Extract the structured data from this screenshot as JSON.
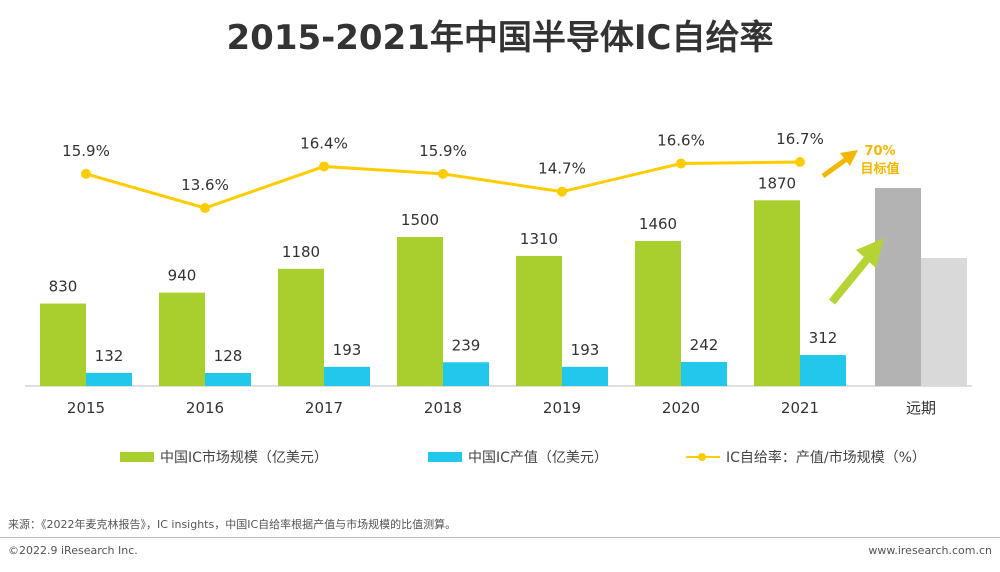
{
  "title": "2015-2021年中国半导体IC自给率",
  "chart_data": {
    "type": "bar",
    "categories": [
      "2015",
      "2016",
      "2017",
      "2018",
      "2019",
      "2020",
      "2021"
    ],
    "future_category": "远期",
    "series": [
      {
        "name": "中国IC市场规模（亿美元）",
        "kind": "bar",
        "color": "#A8CF2E",
        "values": [
          830,
          940,
          1180,
          1500,
          1310,
          1460,
          1870
        ]
      },
      {
        "name": "中国IC产值（亿美元）",
        "kind": "bar",
        "color": "#22C7EC",
        "values": [
          132,
          128,
          193,
          239,
          193,
          242,
          312
        ]
      },
      {
        "name": "IC自给率：产值/市场规模（%）",
        "kind": "line",
        "color": "#FFCC00",
        "values": [
          15.9,
          13.6,
          16.4,
          15.9,
          14.7,
          16.6,
          16.7
        ]
      }
    ],
    "line_labels": [
      "15.9%",
      "13.6%",
      "16.4%",
      "15.9%",
      "14.7%",
      "16.6%",
      "16.7%"
    ],
    "bar_ylim": [
      0,
      2100
    ],
    "line_ylim": [
      10,
      20
    ],
    "target": {
      "value_label": "70%",
      "label": "目标值",
      "color": "#F2B800"
    },
    "future_bar_colors": [
      "#B3B3B3",
      "#D9D9D9"
    ],
    "arrow_color": "#B5D334"
  },
  "source": "来源：《2022年麦克林报告》，IC insights，中国IC自给率根据产值与市场规模的比值测算。",
  "footer": {
    "copyright": "©2022.9 iResearch Inc.",
    "website": "www.iresearch.com.cn"
  }
}
